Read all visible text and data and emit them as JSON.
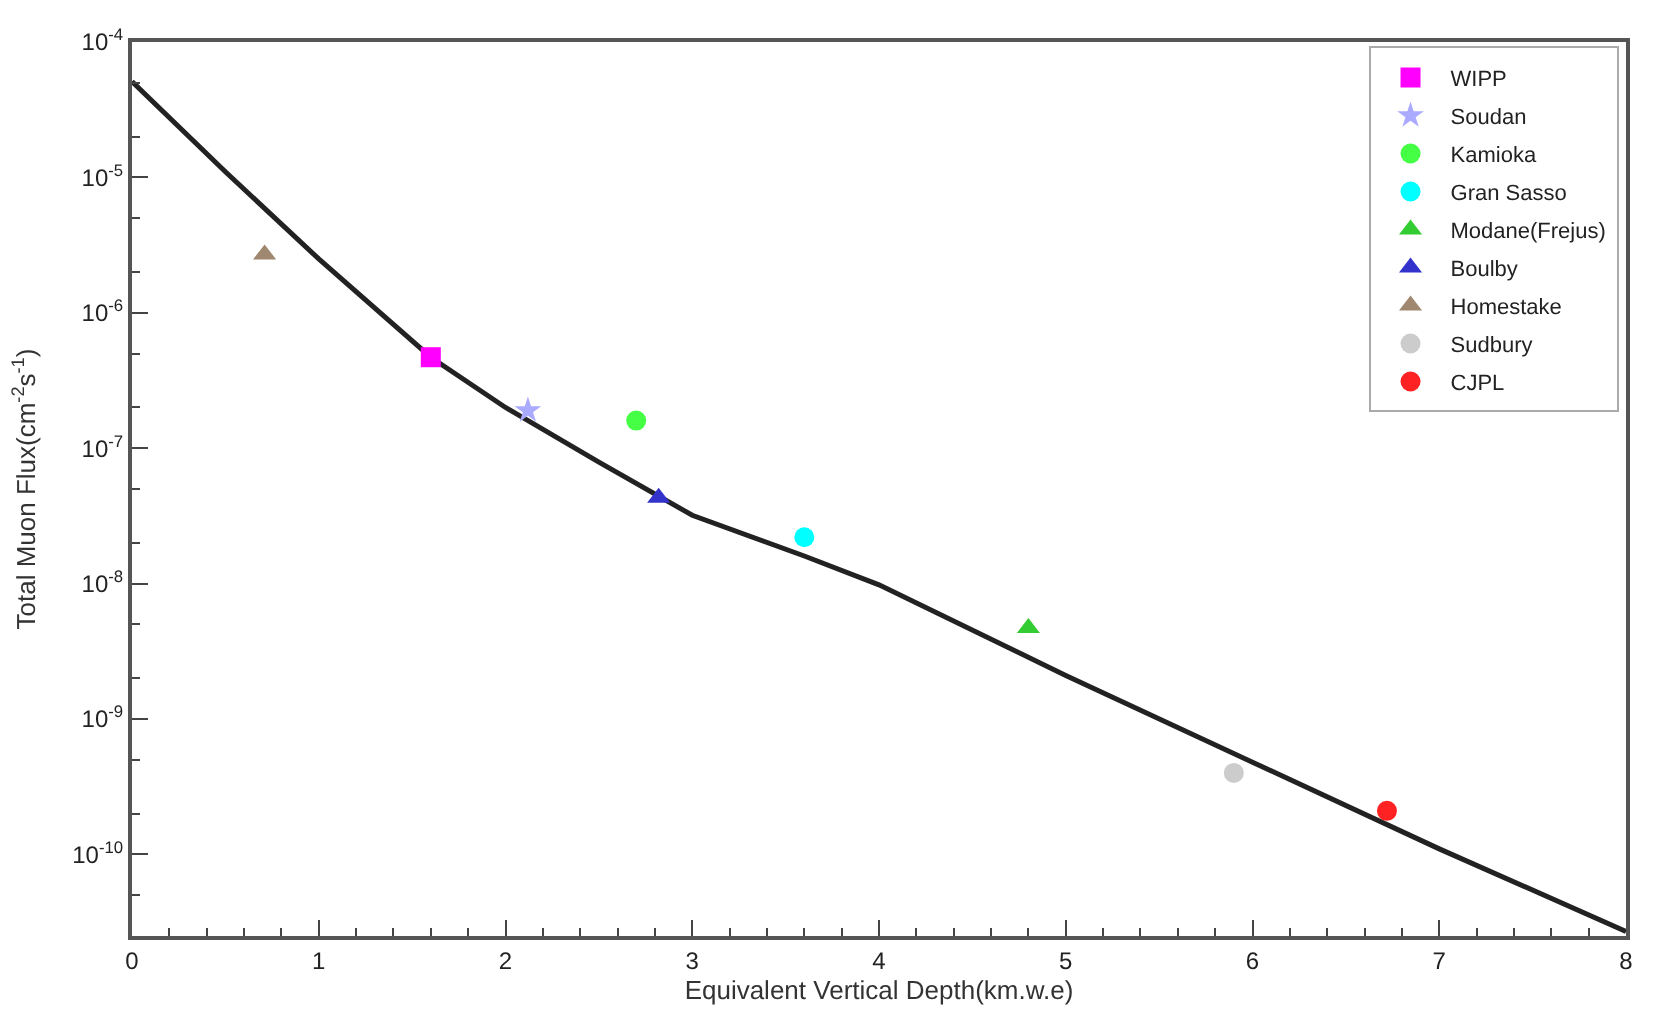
{
  "chart_data": {
    "type": "scatter",
    "xlabel": "Equivalent Vertical Depth(km.w.e)",
    "ylabel": "Total Muon Flux(cm$^{-2}$s$^{-1}$)",
    "log": "y",
    "legend": "top right",
    "xlim": [
      0,
      8
    ],
    "xticks": [
      0,
      1,
      2,
      3,
      4,
      5,
      6,
      7,
      8
    ],
    "ylim": [
      2.5e-11,
      0.0001
    ],
    "yticks": [
      {
        "value": 0.0001,
        "label": "10$^{-4}$"
      },
      {
        "value": 1e-05,
        "label": "10$^{-5}$"
      },
      {
        "value": 1e-06,
        "label": "10$^{-6}$"
      },
      {
        "value": 1e-07,
        "label": "10$^{-7}$"
      },
      {
        "value": 1e-08,
        "label": "10$^{-8}$"
      },
      {
        "value": 1e-09,
        "label": "10$^{-9}$"
      },
      {
        "value": 1e-10,
        "label": "10$^{-10}$"
      }
    ],
    "series": [
      {
        "name": "WIPP",
        "color": "#ff00ff",
        "marker": "square",
        "x": [
          1.6
        ],
        "values": [
          4.7e-07
        ]
      },
      {
        "name": "Soudan",
        "color": "#aaaaff",
        "marker": "star",
        "x": [
          2.12
        ],
        "values": [
          1.9e-07
        ]
      },
      {
        "name": "Kamioka",
        "color": "#44ff44",
        "marker": "circle",
        "x": [
          2.7
        ],
        "values": [
          1.6e-07
        ]
      },
      {
        "name": "Gran Sasso",
        "color": "#00ffff",
        "marker": "circle",
        "x": [
          3.6
        ],
        "values": [
          2.2e-08
        ]
      },
      {
        "name": "Modane(Frejus)",
        "color": "#33cc33",
        "marker": "triangle",
        "x": [
          4.8
        ],
        "values": [
          4.7e-09
        ]
      },
      {
        "name": "Boulby",
        "color": "#3333cc",
        "marker": "triangle",
        "x": [
          2.82
        ],
        "values": [
          4.3e-08
        ]
      },
      {
        "name": "Homestake",
        "color": "#a08870",
        "marker": "triangle",
        "x": [
          0.71
        ],
        "values": [
          2.7e-06
        ]
      },
      {
        "name": "Sudbury",
        "color": "#cccccc",
        "marker": "circle",
        "x": [
          5.9
        ],
        "values": [
          4e-10
        ]
      },
      {
        "name": "CJPL",
        "color": "#ff2222",
        "marker": "circle",
        "x": [
          6.72
        ],
        "values": [
          2.1e-10
        ]
      },
      {
        "type": "line",
        "color": "#222222",
        "marker": "none",
        "line_style": "solid",
        "x": [
          0,
          0.5,
          1,
          1.6,
          2,
          2.5,
          3,
          3.6,
          4,
          5,
          6,
          7,
          8
        ],
        "values": [
          5.1e-05,
          1.1e-05,
          2.5e-06,
          4.7e-07,
          2e-07,
          7.9e-08,
          3.2e-08,
          1.6e-08,
          9.8e-09,
          2.1e-09,
          4.8e-10,
          1.1e-10,
          2.7e-11
        ]
      }
    ]
  }
}
